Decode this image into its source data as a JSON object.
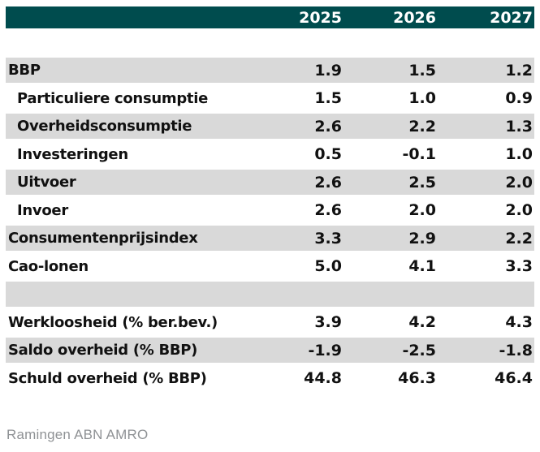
{
  "header": {
    "columns": [
      "2025",
      "2026",
      "2027"
    ]
  },
  "rows": [
    {
      "label": "BBP",
      "indent": false,
      "values": [
        "1.9",
        "1.5",
        "1.2"
      ]
    },
    {
      "label": "Particuliere consumptie",
      "indent": true,
      "values": [
        "1.5",
        "1.0",
        "0.9"
      ]
    },
    {
      "label": "Overheidsconsumptie",
      "indent": true,
      "values": [
        "2.6",
        "2.2",
        "1.3"
      ]
    },
    {
      "label": "Investeringen",
      "indent": true,
      "values": [
        "0.5",
        "-0.1",
        "1.0"
      ]
    },
    {
      "label": "Uitvoer",
      "indent": true,
      "values": [
        "2.6",
        "2.5",
        "2.0"
      ]
    },
    {
      "label": "Invoer",
      "indent": true,
      "values": [
        "2.6",
        "2.0",
        "2.0"
      ]
    },
    {
      "label": "Consumentenprijsindex",
      "indent": false,
      "values": [
        "3.3",
        "2.9",
        "2.2"
      ]
    },
    {
      "label": "Cao-lonen",
      "indent": false,
      "values": [
        "5.0",
        "4.1",
        "3.3"
      ]
    },
    {
      "label": "",
      "indent": false,
      "values": [
        "",
        "",
        ""
      ]
    },
    {
      "label": "Werkloosheid (% ber.bev.)",
      "indent": false,
      "values": [
        "3.9",
        "4.2",
        "4.3"
      ]
    },
    {
      "label": "Saldo overheid (% BBP)",
      "indent": false,
      "values": [
        "-1.9",
        "-2.5",
        "-1.8"
      ]
    },
    {
      "label": "Schuld overheid (% BBP)",
      "indent": false,
      "values": [
        "44.8",
        "46.3",
        "46.4"
      ]
    }
  ],
  "footer": {
    "source_note": "Ramingen ABN AMRO"
  },
  "colors": {
    "header_bg": "#004C4E",
    "header_text": "#FFFFFF",
    "row_stripe": "#D9D9D9",
    "body_text": "#111111",
    "footer_text": "#8F9295"
  },
  "chart_data": {
    "type": "table",
    "title": "",
    "categories": [
      "2025",
      "2026",
      "2027"
    ],
    "series": [
      {
        "name": "BBP",
        "values": [
          1.9,
          1.5,
          1.2
        ]
      },
      {
        "name": "Particuliere consumptie",
        "values": [
          1.5,
          1.0,
          0.9
        ]
      },
      {
        "name": "Overheidsconsumptie",
        "values": [
          2.6,
          2.2,
          1.3
        ]
      },
      {
        "name": "Investeringen",
        "values": [
          0.5,
          -0.1,
          1.0
        ]
      },
      {
        "name": "Uitvoer",
        "values": [
          2.6,
          2.5,
          2.0
        ]
      },
      {
        "name": "Invoer",
        "values": [
          2.6,
          2.0,
          2.0
        ]
      },
      {
        "name": "Consumentenprijsindex",
        "values": [
          3.3,
          2.9,
          2.2
        ]
      },
      {
        "name": "Cao-lonen",
        "values": [
          5.0,
          4.1,
          3.3
        ]
      },
      {
        "name": "Werkloosheid (% ber.bev.)",
        "values": [
          3.9,
          4.2,
          4.3
        ]
      },
      {
        "name": "Saldo overheid (% BBP)",
        "values": [
          -1.9,
          -2.5,
          -1.8
        ]
      },
      {
        "name": "Schuld overheid (% BBP)",
        "values": [
          44.8,
          46.3,
          46.4
        ]
      }
    ],
    "annotations": [
      "Ramingen ABN AMRO"
    ],
    "legend_position": "none",
    "grid": false
  }
}
